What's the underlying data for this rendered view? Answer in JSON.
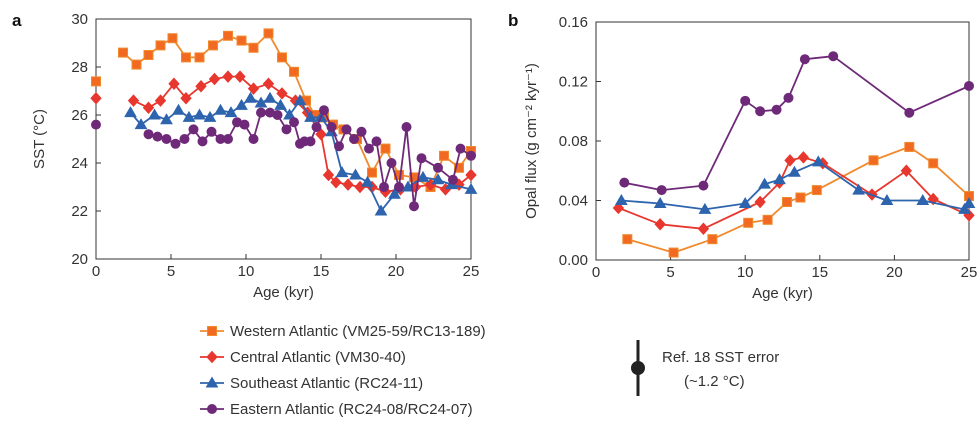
{
  "figure": {
    "panel_a_letter": "a",
    "panel_b_letter": "b",
    "errorbar_label_line1": "Ref. 18 SST error",
    "errorbar_label_line2": "(~1.2 °C)",
    "errorbar_sst_value": 1.2
  },
  "legend": [
    {
      "series": "western",
      "label": "Western Atlantic (VM25-59/RC13-189)"
    },
    {
      "series": "central",
      "label": "Central Atlantic (VM30-40)"
    },
    {
      "series": "southeast",
      "label": "Southeast Atlantic (RC24-11)"
    },
    {
      "series": "eastern",
      "label": "Eastern Atlantic (RC24-08/RC24-07)"
    }
  ],
  "styles": {
    "western": {
      "color": "#f08a2c",
      "marker": "square",
      "marker_fill": "#f26a22"
    },
    "central": {
      "color": "#e8372e",
      "marker": "diamond",
      "marker_fill": "#e8372e"
    },
    "southeast": {
      "color": "#2e64ad",
      "marker": "triangle",
      "marker_fill": "#2e64ad"
    },
    "eastern": {
      "color": "#6e2a78",
      "marker": "circle",
      "marker_fill": "#6e2a78"
    }
  },
  "chart_data": [
    {
      "panel": "a",
      "type": "line",
      "xlabel": "Age (kyr)",
      "ylabel": "SST (°C)",
      "xlim": [
        0,
        25
      ],
      "ylim": [
        20,
        30
      ],
      "xticks": [
        0,
        5,
        10,
        15,
        20,
        25
      ],
      "yticks": [
        20,
        22,
        24,
        26,
        28,
        30
      ],
      "core_top_markers": [
        {
          "series": "western",
          "x": 0,
          "y": 27.4
        },
        {
          "series": "central",
          "x": 0,
          "y": 26.7
        },
        {
          "series": "eastern",
          "x": 0,
          "y": 25.6
        }
      ],
      "series": [
        {
          "key": "western",
          "x": [
            1.8,
            2.7,
            3.5,
            4.3,
            5.1,
            6.0,
            6.9,
            7.8,
            8.8,
            9.7,
            10.5,
            11.5,
            12.4,
            13.2,
            14.0,
            14.6,
            15.2,
            15.8,
            16.5,
            17.4,
            18.4,
            19.3,
            20.2,
            21.2,
            22.3,
            23.2,
            24.2,
            25.0
          ],
          "y": [
            28.6,
            28.1,
            28.5,
            28.9,
            29.2,
            28.4,
            28.4,
            28.9,
            29.3,
            29.1,
            28.8,
            29.4,
            28.4,
            27.8,
            26.6,
            26.0,
            25.9,
            25.6,
            25.4,
            25.0,
            23.6,
            24.6,
            23.5,
            23.4,
            23.0,
            24.3,
            23.8,
            24.5
          ]
        },
        {
          "key": "central",
          "x": [
            2.5,
            3.5,
            4.3,
            5.2,
            6.0,
            7.0,
            7.9,
            8.8,
            9.6,
            10.5,
            11.5,
            12.4,
            13.3,
            14.1,
            15.0,
            15.5,
            16.0,
            16.8,
            17.6,
            18.4,
            19.3,
            20.3,
            21.3,
            22.3,
            23.3,
            24.2,
            25.0
          ],
          "y": [
            26.6,
            26.3,
            26.6,
            27.3,
            26.7,
            27.2,
            27.5,
            27.6,
            27.6,
            27.1,
            27.3,
            26.9,
            26.6,
            26.1,
            25.2,
            23.5,
            23.2,
            23.1,
            23.0,
            23.0,
            22.8,
            22.9,
            23.0,
            23.1,
            22.9,
            23.1,
            23.5
          ]
        },
        {
          "key": "southeast",
          "x": [
            2.3,
            3.0,
            3.9,
            4.7,
            5.5,
            6.2,
            6.9,
            7.6,
            8.3,
            9.0,
            9.7,
            10.3,
            11.0,
            11.6,
            12.3,
            12.9,
            13.6,
            14.3,
            15.0,
            15.7,
            16.4,
            17.3,
            18.1,
            19.0,
            19.9,
            20.8,
            21.8,
            22.8,
            23.7,
            25.0
          ],
          "y": [
            26.1,
            25.6,
            26.0,
            25.8,
            26.2,
            25.9,
            26.0,
            25.9,
            26.2,
            26.1,
            26.4,
            26.7,
            26.5,
            26.7,
            26.4,
            26.0,
            26.6,
            25.9,
            25.9,
            25.3,
            23.6,
            23.5,
            23.2,
            22.0,
            22.7,
            23.0,
            23.4,
            23.3,
            23.1,
            22.9
          ]
        },
        {
          "key": "eastern",
          "x": [
            3.5,
            4.1,
            4.7,
            5.3,
            5.9,
            6.5,
            7.1,
            7.7,
            8.3,
            8.8,
            9.4,
            9.9,
            10.5,
            11.0,
            11.6,
            12.1,
            12.7,
            13.2,
            13.6,
            13.9,
            14.3,
            14.7,
            15.2,
            15.7,
            16.2,
            16.7,
            17.2,
            17.7,
            18.2,
            18.7,
            19.2,
            19.7,
            20.2,
            20.7,
            21.2,
            21.7,
            22.8,
            23.8,
            24.3,
            25.0
          ],
          "y": [
            25.2,
            25.1,
            25.0,
            24.8,
            25.0,
            25.4,
            24.9,
            25.3,
            25.0,
            25.0,
            25.7,
            25.6,
            25.0,
            26.1,
            26.1,
            26.0,
            25.4,
            25.7,
            24.8,
            24.9,
            24.9,
            25.5,
            26.2,
            25.5,
            24.7,
            25.4,
            25.0,
            25.3,
            24.6,
            24.9,
            23.0,
            24.0,
            23.0,
            25.5,
            22.2,
            24.2,
            23.8,
            23.3,
            24.6,
            24.3
          ]
        }
      ]
    },
    {
      "panel": "b",
      "type": "line",
      "xlabel": "Age (kyr)",
      "ylabel": "Opal flux (g cm⁻² kyr⁻¹)",
      "xlim": [
        0,
        25
      ],
      "ylim": [
        0,
        0.16
      ],
      "xticks": [
        0,
        5,
        10,
        15,
        20,
        25
      ],
      "yticks": [
        0,
        0.04,
        0.08,
        0.12,
        0.16
      ],
      "ytick_labels": [
        "0.00",
        "0.04",
        "0.08",
        "0.12",
        "0.16"
      ],
      "series": [
        {
          "key": "western",
          "x": [
            2.1,
            5.2,
            7.8,
            10.2,
            11.5,
            12.8,
            13.7,
            14.8,
            18.6,
            21.0,
            22.6,
            25.0
          ],
          "y": [
            0.014,
            0.005,
            0.014,
            0.025,
            0.027,
            0.039,
            0.042,
            0.047,
            0.067,
            0.076,
            0.065,
            0.043
          ]
        },
        {
          "key": "central",
          "x": [
            1.5,
            4.3,
            7.2,
            11.0,
            12.3,
            13.0,
            13.9,
            15.2,
            18.5,
            20.8,
            22.6,
            25.0
          ],
          "y": [
            0.035,
            0.024,
            0.021,
            0.039,
            0.052,
            0.067,
            0.069,
            0.065,
            0.044,
            0.06,
            0.041,
            0.03
          ]
        },
        {
          "key": "southeast",
          "x": [
            1.7,
            4.3,
            7.3,
            10.0,
            11.3,
            12.3,
            13.3,
            14.9,
            17.6,
            19.5,
            21.9,
            24.7,
            25.0
          ],
          "y": [
            0.04,
            0.038,
            0.034,
            0.038,
            0.051,
            0.054,
            0.059,
            0.066,
            0.047,
            0.04,
            0.04,
            0.034,
            0.038
          ]
        },
        {
          "key": "eastern",
          "x": [
            1.9,
            4.4,
            7.2,
            10.0,
            11.0,
            12.1,
            12.9,
            14.0,
            15.9,
            21.0,
            25.0
          ],
          "y": [
            0.052,
            0.047,
            0.05,
            0.107,
            0.1,
            0.101,
            0.109,
            0.135,
            0.137,
            0.099,
            0.117
          ]
        }
      ]
    }
  ]
}
